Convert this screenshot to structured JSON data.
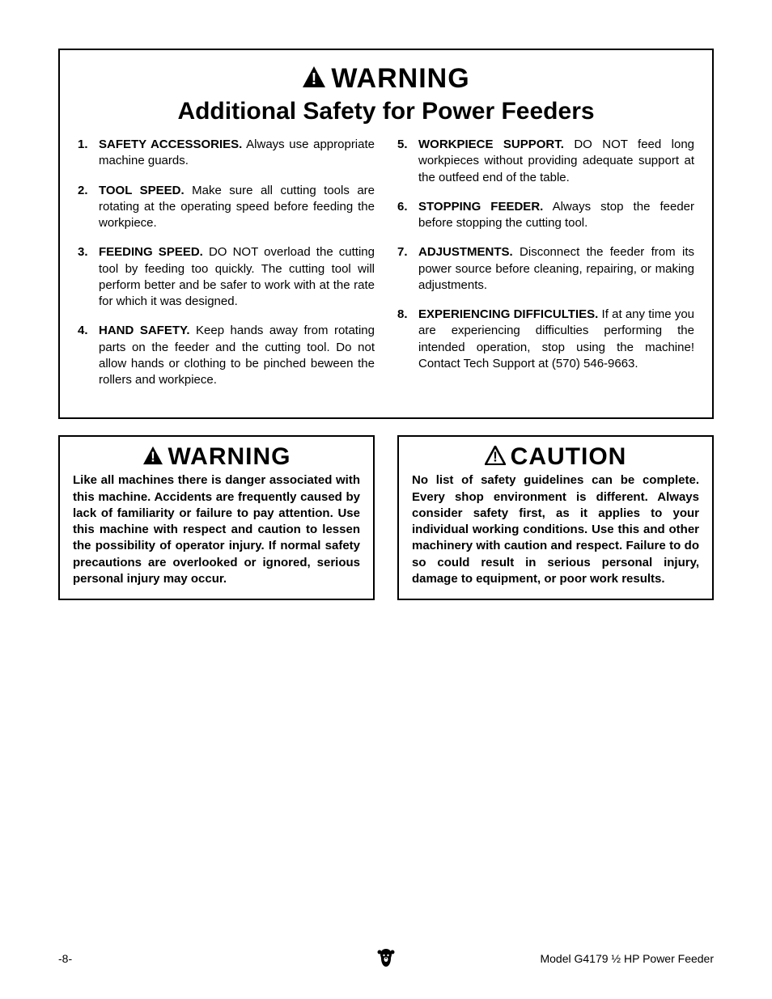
{
  "main_box": {
    "warning_label": "WARNING",
    "warning_fontsize": 34,
    "subtitle": "Additional Safety for Power Feeders",
    "subtitle_fontsize": 30,
    "icon_size_big": 30,
    "left_items": [
      {
        "n": "1.",
        "title": "SAFETY ACCESSORIES.",
        "body": " Always use appropriate machine guards."
      },
      {
        "n": "2.",
        "title": "TOOL SPEED.",
        "body": " Make sure all cutting tools are rotating at the operating speed before feeding the workpiece."
      },
      {
        "n": "3.",
        "title": "FEEDING SPEED.",
        "body": " DO NOT overload the cutting tool by feeding too quickly. The cutting tool will perform better and be safer to work with at the rate for which it was designed."
      },
      {
        "n": "4.",
        "title": "HAND SAFETY.",
        "body": " Keep hands away from rotating parts on the feeder and the cutting tool. Do not allow hands or clothing to be pinched beween the rollers and workpiece."
      }
    ],
    "right_items": [
      {
        "n": "5.",
        "title": "WORKPIECE SUPPORT.",
        "body": " DO NOT feed long workpieces without providing adequate support at the outfeed end of the table."
      },
      {
        "n": "6.",
        "title": "STOPPING FEEDER.",
        "body": " Always stop the feeder before stopping the cutting tool."
      },
      {
        "n": "7.",
        "title": "ADJUSTMENTS.",
        "body": " Disconnect the feeder from its power source before cleaning, repairing, or making adjustments."
      },
      {
        "n": "8.",
        "title": "EXPERIENCING DIFFICULTIES.",
        "body": " If at any time you are experiencing difficulties performing the intended operation, stop using the machine! Contact Tech Support at (570) 546-9663."
      }
    ]
  },
  "warning_box": {
    "label": "WARNING",
    "label_fontsize": 30,
    "icon_size": 26,
    "body": "Like all machines there is danger associated with this machine. Accidents are frequently caused by lack of familiarity or failure to pay attention. Use this machine with respect and caution to lessen the possibility of operator injury. If normal safety precautions are overlooked or ignored, serious personal injury may occur."
  },
  "caution_box": {
    "label": "CAUTION",
    "label_fontsize": 30,
    "icon_size": 26,
    "body": "No list of safety guidelines can be complete. Every shop environment is different. Always consider safety first, as it applies to your individual working conditions. Use this and other machinery with caution and respect. Failure to do so could result in serious personal injury, damage to equipment, or poor work results."
  },
  "footer": {
    "page_num": "-8-",
    "model_text": "Model G4179 ½ HP Power Feeder"
  },
  "colors": {
    "text": "#000000",
    "border": "#000000",
    "background": "#ffffff"
  }
}
